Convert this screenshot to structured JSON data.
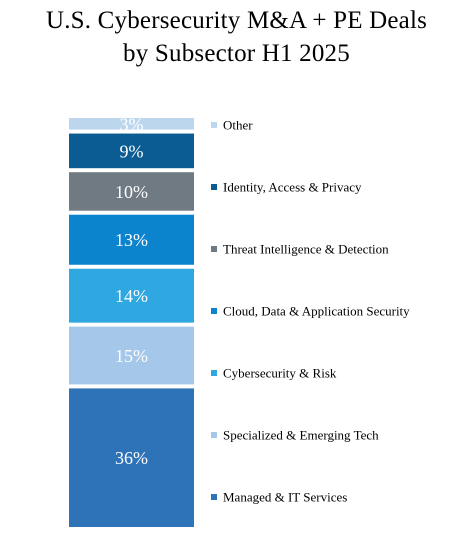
{
  "chart_data": {
    "type": "bar",
    "title_lines": [
      "U.S. Cybersecurity M&A + PE Deals",
      "by Subsector H1 2025"
    ],
    "xlabel": "",
    "ylabel": "",
    "stacked": true,
    "unit": "%",
    "ylim": [
      0,
      100
    ],
    "grid": false,
    "legend_placement": "right",
    "series": [
      {
        "name": "Managed & IT Services",
        "value": 36,
        "label": "36%",
        "color": "#2e72b8",
        "label_color": "#ffffff"
      },
      {
        "name": "Specialized & Emerging Tech",
        "value": 15,
        "label": "15%",
        "color": "#a4c7ea",
        "label_color": "#ffffff"
      },
      {
        "name": "Cybersecurity & Risk",
        "value": 14,
        "label": "14%",
        "color": "#2fa8e2",
        "label_color": "#ffffff"
      },
      {
        "name": "Cloud, Data & Application Security",
        "value": 13,
        "label": "13%",
        "color": "#0c83cd",
        "label_color": "#ffffff"
      },
      {
        "name": "Threat Intelligence & Detection",
        "value": 10,
        "label": "10%",
        "color": "#6f7a83",
        "label_color": "#ffffff"
      },
      {
        "name": "Identity, Access & Privacy",
        "value": 9,
        "label": "9%",
        "color": "#0a5c92",
        "label_color": "#ffffff"
      },
      {
        "name": "Other",
        "value": 3,
        "label": "3%",
        "color": "#bcd6ee",
        "label_color": "#222222"
      }
    ]
  }
}
